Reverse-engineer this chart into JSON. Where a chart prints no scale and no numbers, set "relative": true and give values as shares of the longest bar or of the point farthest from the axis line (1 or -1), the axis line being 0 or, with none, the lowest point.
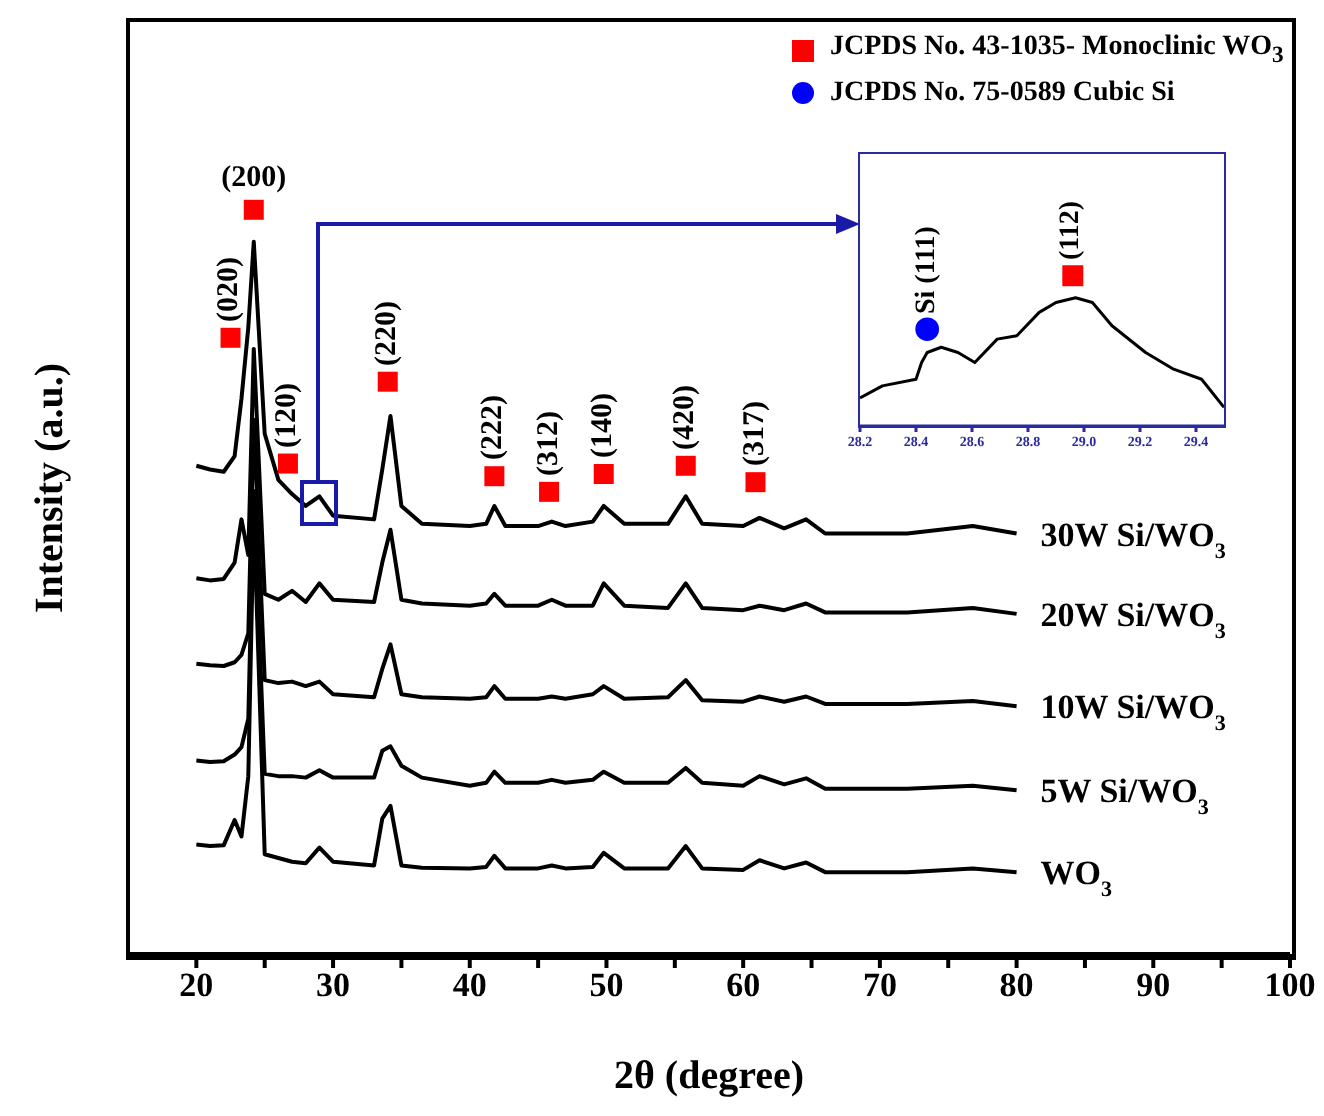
{
  "chart_data": [
    {
      "type": "line",
      "xlabel": "2θ (degree)",
      "ylabel": "Intensity (a.u.)",
      "relative": true,
      "xlim": [
        15,
        100
      ],
      "xticks": [
        20,
        {
          "value": 25,
          "label": null
        },
        30,
        {
          "value": 35,
          "label": null
        },
        40,
        {
          "value": 45,
          "label": null
        },
        50,
        {
          "value": 55,
          "label": null
        },
        60,
        {
          "value": 65,
          "label": null
        },
        70,
        {
          "value": 75,
          "label": null
        },
        80,
        {
          "value": 85,
          "label": null
        },
        90,
        {
          "value": 95,
          "label": null
        },
        100
      ],
      "tick_labels": "x",
      "legend": "top right",
      "line_style": "solid",
      "x": [
        20,
        21,
        22,
        22.8,
        23.3,
        23.8,
        24.2,
        25.0,
        26.0,
        27.0,
        28.0,
        29.0,
        30.0,
        33.0,
        33.6,
        34.2,
        35.0,
        36.5,
        40.0,
        41.2,
        41.8,
        42.6,
        45.0,
        46.0,
        47.0,
        49.0,
        49.8,
        51.3,
        54.5,
        55.8,
        57.0,
        60.0,
        61.2,
        63.0,
        64.6,
        66.0,
        72.0,
        76.8,
        80.0
      ],
      "series": [
        {
          "name": "30W Si/WO$_{3}$",
          "color": "#000000",
          "values": [
            0.656,
            0.651,
            0.648,
            0.669,
            0.746,
            0.842,
            0.957,
            0.699,
            0.637,
            0.618,
            0.602,
            0.615,
            0.589,
            0.584,
            0.651,
            0.723,
            0.602,
            0.578,
            0.575,
            0.578,
            0.602,
            0.575,
            0.575,
            0.581,
            0.575,
            0.581,
            0.602,
            0.578,
            0.578,
            0.615,
            0.578,
            0.575,
            0.586,
            0.572,
            0.584,
            0.565,
            0.565,
            0.575,
            0.565
          ]
        },
        {
          "name": "20W Si/WO$_{3}$",
          "color": "#000000",
          "values": [
            0.505,
            0.502,
            0.504,
            0.526,
            0.584,
            0.536,
            0.813,
            0.484,
            0.476,
            0.488,
            0.473,
            0.498,
            0.476,
            0.473,
            0.526,
            0.57,
            0.476,
            0.471,
            0.468,
            0.471,
            0.484,
            0.468,
            0.468,
            0.476,
            0.468,
            0.468,
            0.498,
            0.468,
            0.465,
            0.498,
            0.465,
            0.462,
            0.468,
            0.462,
            0.471,
            0.459,
            0.459,
            0.465,
            0.457
          ]
        },
        {
          "name": "10W Si/WO$_{3}$",
          "color": "#000000",
          "values": [
            0.39,
            0.388,
            0.387,
            0.392,
            0.402,
            0.431,
            0.718,
            0.368,
            0.364,
            0.366,
            0.36,
            0.366,
            0.349,
            0.345,
            0.383,
            0.416,
            0.349,
            0.345,
            0.343,
            0.345,
            0.36,
            0.343,
            0.343,
            0.346,
            0.343,
            0.349,
            0.36,
            0.343,
            0.345,
            0.368,
            0.341,
            0.339,
            0.346,
            0.339,
            0.346,
            0.336,
            0.336,
            0.34,
            0.333
          ]
        },
        {
          "name": "5W Si/WO$_{3}$",
          "color": "#000000",
          "values": [
            0.26,
            0.258,
            0.259,
            0.268,
            0.278,
            0.316,
            0.622,
            0.242,
            0.239,
            0.239,
            0.237,
            0.247,
            0.237,
            0.237,
            0.273,
            0.279,
            0.253,
            0.237,
            0.226,
            0.23,
            0.245,
            0.23,
            0.23,
            0.234,
            0.23,
            0.234,
            0.245,
            0.23,
            0.23,
            0.25,
            0.23,
            0.226,
            0.239,
            0.228,
            0.236,
            0.222,
            0.222,
            0.226,
            0.22
          ]
        },
        {
          "name": "WO$_{3}$",
          "color": "#000000",
          "values": [
            0.147,
            0.145,
            0.146,
            0.18,
            0.158,
            0.239,
            0.593,
            0.134,
            0.129,
            0.124,
            0.122,
            0.143,
            0.124,
            0.119,
            0.182,
            0.199,
            0.119,
            0.116,
            0.115,
            0.117,
            0.132,
            0.115,
            0.115,
            0.119,
            0.115,
            0.117,
            0.136,
            0.115,
            0.115,
            0.145,
            0.115,
            0.113,
            0.126,
            0.115,
            0.123,
            0.11,
            0.11,
            0.115,
            0.11
          ]
        },
        {
          "name": "JCPDS No. 43-1035- Monoclinic WO$_{3}$",
          "type": "scatter",
          "marker": "square",
          "color": "#ff0000",
          "x": [
            22.5,
            24.2,
            26.7,
            34.0,
            41.8,
            45.8,
            49.8,
            55.8,
            60.9
          ],
          "values": [
            0.828,
            1.0,
            0.659,
            0.769,
            0.642,
            0.621,
            0.645,
            0.656,
            0.634
          ]
        }
      ],
      "annotations": [
        {
          "text": "(020)",
          "x": 22.5,
          "y": 0.828
        },
        {
          "text": "(200)",
          "x": 24.2,
          "y": 1.0
        },
        {
          "text": "(120)",
          "x": 26.7,
          "y": 0.659
        },
        {
          "text": "(220)",
          "x": 34.0,
          "y": 0.769
        },
        {
          "text": "(222)",
          "x": 41.8,
          "y": 0.642
        },
        {
          "text": "(312)",
          "x": 45.8,
          "y": 0.621
        },
        {
          "text": "(140)",
          "x": 49.8,
          "y": 0.645
        },
        {
          "text": "(420)",
          "x": 55.8,
          "y": 0.656
        },
        {
          "text": "(317)",
          "x": 60.9,
          "y": 0.634
        }
      ]
    },
    {
      "type": "line",
      "relative": true,
      "xlim": [
        28.2,
        29.5
      ],
      "xticks": [
        28.2,
        28.4,
        28.6,
        28.8,
        {
          "value": 29,
          "label": "29.0"
        },
        29.2,
        29.4
      ],
      "tick_labels": "x",
      "legend": "top",
      "line_style": "solid",
      "series": [
        {
          "color": "#000000",
          "x": [
            28.2,
            28.28,
            28.4,
            28.42,
            28.44,
            28.49,
            28.55,
            28.61,
            28.69,
            28.76,
            28.84,
            28.9,
            28.97,
            29.03,
            29.1,
            29.22,
            29.32,
            29.42,
            29.5
          ],
          "values": [
            0.187,
            0.267,
            0.311,
            0.422,
            0.489,
            0.524,
            0.489,
            0.422,
            0.578,
            0.6,
            0.756,
            0.822,
            0.853,
            0.822,
            0.667,
            0.489,
            0.378,
            0.311,
            0.124
          ]
        },
        {
          "type": "scatter",
          "marker": "square",
          "color": "#ff0000",
          "x": [
            28.96
          ],
          "values": [
            1.0
          ]
        },
        {
          "name": "JCPDS No. 75-0589 Cubic Si",
          "type": "scatter",
          "marker": "circle",
          "color": "#0000ff",
          "x": [
            28.44
          ],
          "values": [
            0.644
          ]
        }
      ],
      "annotations": [
        {
          "text": "Si (111)",
          "x": 28.44,
          "y": 0.644
        },
        {
          "text": "(112)",
          "x": 28.96,
          "y": 1.0
        }
      ]
    }
  ]
}
